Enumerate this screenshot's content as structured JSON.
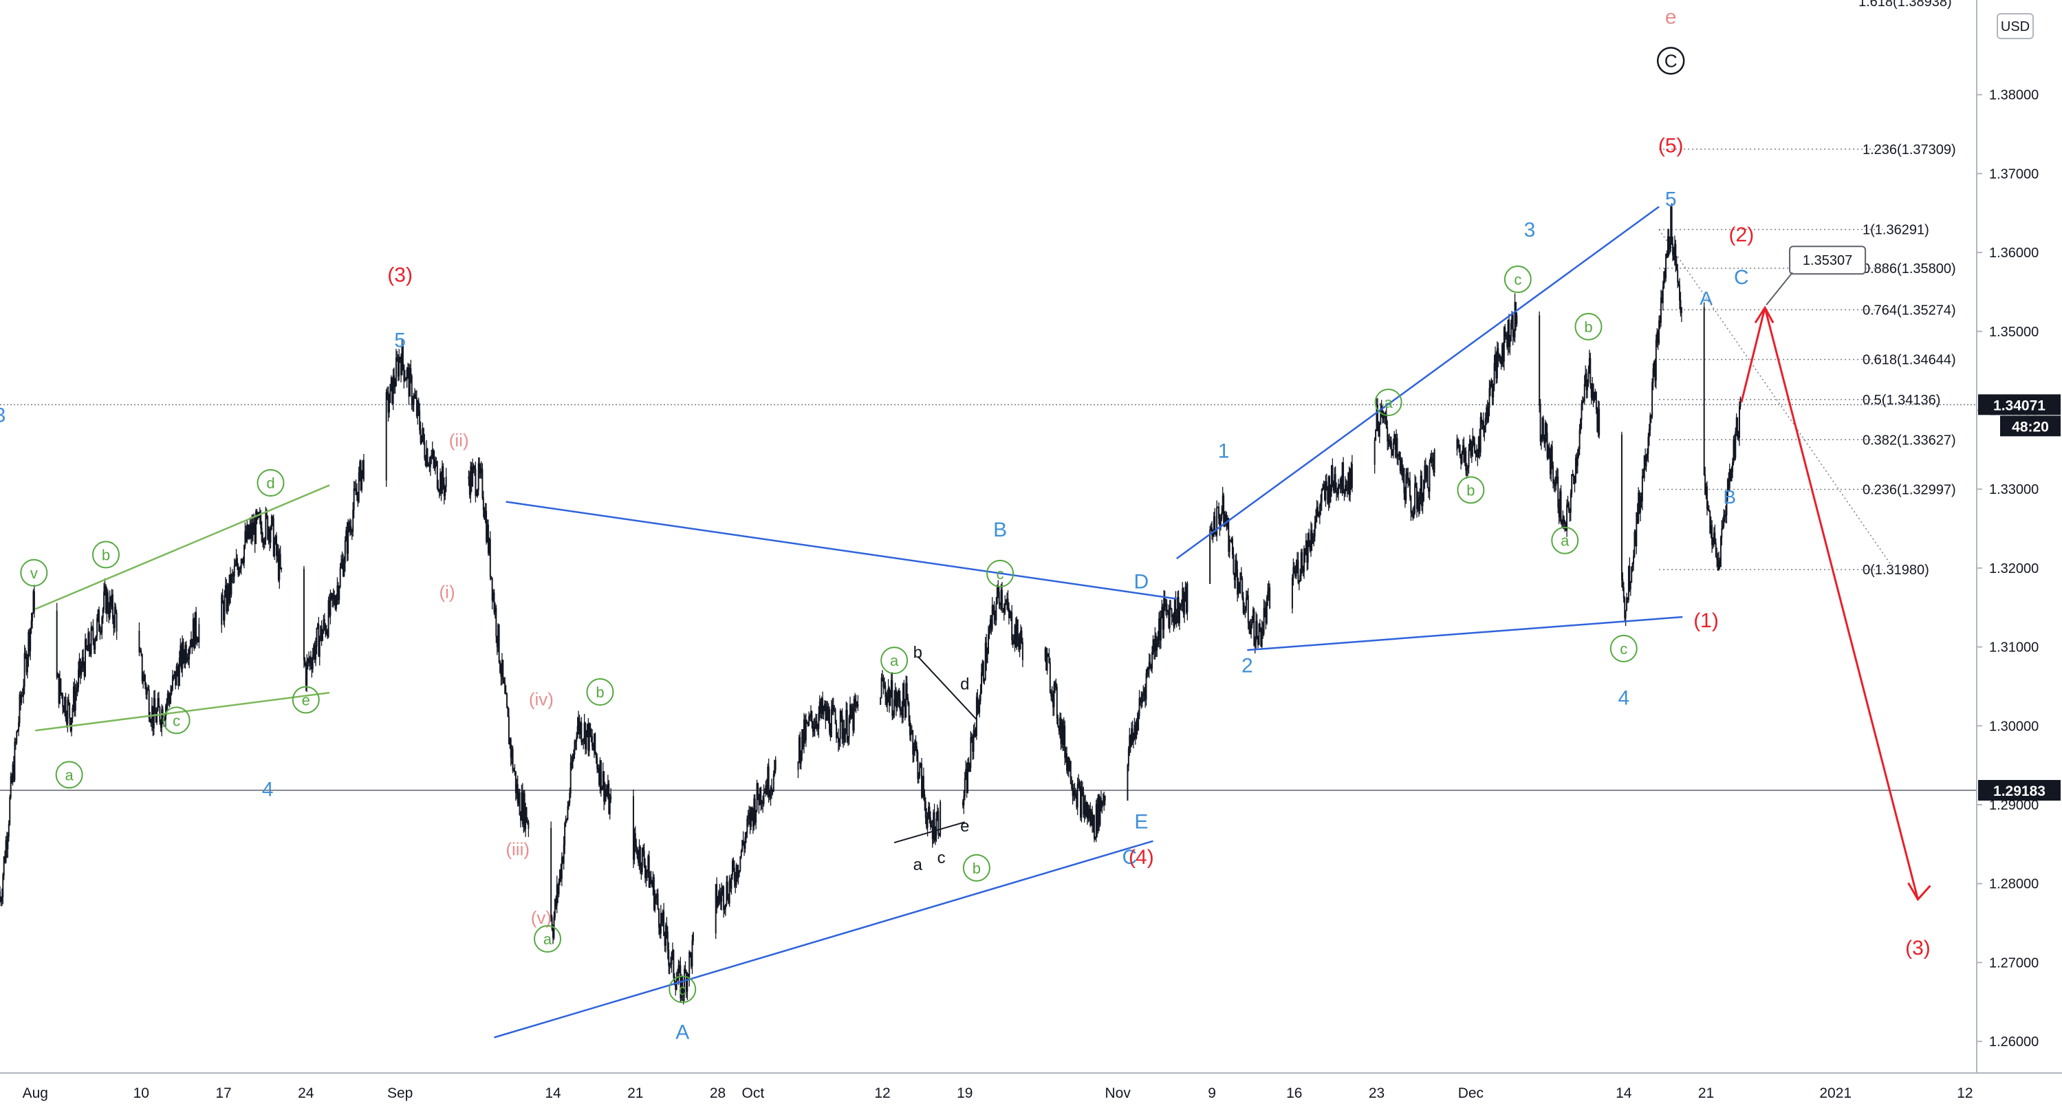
{
  "currency_label": "USD",
  "price_scale": {
    "ticks": [
      "1.38000",
      "1.37000",
      "1.36000",
      "1.35000",
      "1.34000",
      "1.33000",
      "1.32000",
      "1.31000",
      "1.30000",
      "1.29000",
      "1.28000",
      "1.27000",
      "1.26000"
    ],
    "cut_top_label": "1.618(1.38938)",
    "current_price": "1.34071",
    "countdown": "48:20",
    "support_price": "1.29183"
  },
  "time_axis": {
    "labels": [
      "Aug",
      "10",
      "17",
      "24",
      "Sep",
      "14",
      "21",
      "28",
      "Oct",
      "12",
      "19",
      "Nov",
      "9",
      "16",
      "23",
      "Dec",
      "14",
      "21",
      "2021",
      "12"
    ]
  },
  "fib_levels": [
    {
      "label": "1.236(1.37309)",
      "value": 1.37309
    },
    {
      "label": "1(1.36291)",
      "value": 1.36291
    },
    {
      "label": "0.886(1.35800)",
      "value": 1.358
    },
    {
      "label": "0.764(1.35274)",
      "value": 1.35274
    },
    {
      "label": "0.618(1.34644)",
      "value": 1.34644
    },
    {
      "label": "0.5(1.34136)",
      "value": 1.34136
    },
    {
      "label": "0.382(1.33627)",
      "value": 1.33627
    },
    {
      "label": "0.236(1.32997)",
      "value": 1.32997
    },
    {
      "label": "0(1.31980)",
      "value": 1.3198
    }
  ],
  "target_box": "1.35307",
  "wave_labels": {
    "blue": [
      "3",
      "4",
      "5",
      "A",
      "B",
      "C",
      "D",
      "E",
      "1",
      "2",
      "3",
      "4",
      "5",
      "A",
      "B",
      "C"
    ],
    "red": [
      "(3)",
      "(4)",
      "(5)",
      "(1)",
      "(2)",
      "(3)"
    ],
    "pink": [
      "(i)",
      "(ii)",
      "(iii)",
      "(iv)",
      "(v)",
      "e"
    ],
    "green": [
      "v",
      "a",
      "b",
      "c",
      "d",
      "e",
      "a",
      "b",
      "c",
      "a",
      "b",
      "c",
      "a",
      "b",
      "c",
      "a",
      "b",
      "c"
    ],
    "black": [
      "b",
      "d",
      "a",
      "c",
      "e"
    ],
    "circled_black": "C"
  },
  "chart_data": {
    "type": "candlestick",
    "title": "",
    "instrument_currency": "USD",
    "x_range": [
      "2020-07-29",
      "2021-01-13"
    ],
    "ylim": [
      1.256,
      1.392
    ],
    "y_axis_position": "right",
    "grid": false,
    "keypoints": [
      {
        "date": "2020-07-29",
        "price": 1.279
      },
      {
        "date": "2020-08-01",
        "price": 1.317
      },
      {
        "date": "2020-08-04",
        "price": 1.3
      },
      {
        "date": "2020-08-07",
        "price": 1.318
      },
      {
        "date": "2020-08-11",
        "price": 1.302
      },
      {
        "date": "2020-08-14",
        "price": 1.309
      },
      {
        "date": "2020-08-21",
        "price": 1.327
      },
      {
        "date": "2020-08-24",
        "price": 1.305
      },
      {
        "date": "2020-09-01",
        "price": 1.348
      },
      {
        "date": "2020-09-03",
        "price": 1.334
      },
      {
        "date": "2020-09-08",
        "price": 1.329
      },
      {
        "date": "2020-09-11",
        "price": 1.291
      },
      {
        "date": "2020-09-14",
        "price": 1.276
      },
      {
        "date": "2020-09-16",
        "price": 1.3
      },
      {
        "date": "2020-09-21",
        "price": 1.284
      },
      {
        "date": "2020-09-25",
        "price": 1.268
      },
      {
        "date": "2020-09-30",
        "price": 1.285
      },
      {
        "date": "2020-10-04",
        "price": 1.297
      },
      {
        "date": "2020-10-09",
        "price": 1.302
      },
      {
        "date": "2020-10-14",
        "price": 1.305
      },
      {
        "date": "2020-10-16",
        "price": 1.285
      },
      {
        "date": "2020-10-19",
        "price": 1.293
      },
      {
        "date": "2020-10-22",
        "price": 1.317
      },
      {
        "date": "2020-10-26",
        "price": 1.306
      },
      {
        "date": "2020-10-30",
        "price": 1.286
      },
      {
        "date": "2020-11-02",
        "price": 1.299
      },
      {
        "date": "2020-11-05",
        "price": 1.313
      },
      {
        "date": "2020-11-10",
        "price": 1.326
      },
      {
        "date": "2020-11-13",
        "price": 1.311
      },
      {
        "date": "2020-11-17",
        "price": 1.324
      },
      {
        "date": "2020-11-23",
        "price": 1.338
      },
      {
        "date": "2020-11-26",
        "price": 1.33
      },
      {
        "date": "2020-12-02",
        "price": 1.338
      },
      {
        "date": "2020-12-05",
        "price": 1.353
      },
      {
        "date": "2020-12-09",
        "price": 1.323
      },
      {
        "date": "2020-12-11",
        "price": 1.348
      },
      {
        "date": "2020-12-14",
        "price": 1.314
      },
      {
        "date": "2020-12-18",
        "price": 1.362
      },
      {
        "date": "2020-12-22",
        "price": 1.319
      },
      {
        "date": "2020-12-24",
        "price": 1.341
      }
    ],
    "forecast_path": [
      {
        "date": "2020-12-24",
        "price": 1.341
      },
      {
        "date": "2020-12-26",
        "price": 1.353
      },
      {
        "date": "2021-01-08",
        "price": 1.278
      }
    ],
    "horizontal_levels": [
      1.29183,
      1.34071
    ]
  }
}
